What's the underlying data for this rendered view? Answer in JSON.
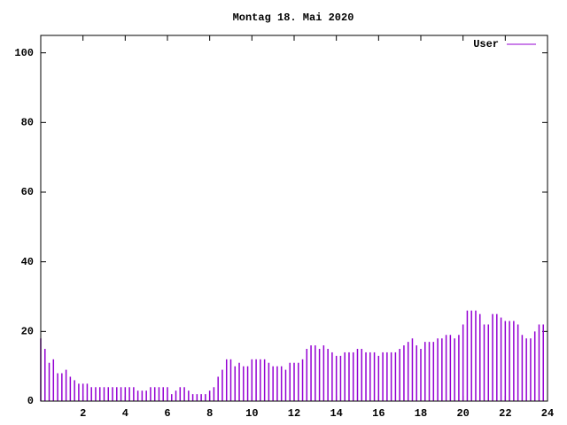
{
  "chart_data": {
    "type": "impulses",
    "title": "Montag 18. Mai 2020",
    "x": [
      0,
      0.2,
      0.4,
      0.6,
      0.8,
      1,
      1.2,
      1.4,
      1.6,
      1.8,
      2,
      2.2,
      2.4,
      2.6,
      2.8,
      3,
      3.2,
      3.4,
      3.6,
      3.8,
      4,
      4.2,
      4.4,
      4.6,
      4.8,
      5,
      5.2,
      5.4,
      5.6,
      5.8,
      6,
      6.2,
      6.4,
      6.6,
      6.8,
      7,
      7.2,
      7.4,
      7.6,
      7.8,
      8,
      8.2,
      8.4,
      8.6,
      8.8,
      9,
      9.2,
      9.4,
      9.6,
      9.8,
      10,
      10.2,
      10.4,
      10.6,
      10.8,
      11,
      11.2,
      11.4,
      11.6,
      11.8,
      12,
      12.2,
      12.4,
      12.6,
      12.8,
      13,
      13.2,
      13.4,
      13.6,
      13.8,
      14,
      14.2,
      14.4,
      14.6,
      14.8,
      15,
      15.2,
      15.4,
      15.6,
      15.8,
      16,
      16.2,
      16.4,
      16.6,
      16.8,
      17,
      17.2,
      17.4,
      17.6,
      17.8,
      18,
      18.2,
      18.4,
      18.6,
      18.8,
      19,
      19.2,
      19.4,
      19.6,
      19.8,
      20,
      20.2,
      20.4,
      20.6,
      20.8,
      21,
      21.2,
      21.4,
      21.6,
      21.8,
      22,
      22.2,
      22.4,
      22.6,
      22.8,
      23,
      23.2,
      23.4,
      23.6,
      23.8
    ],
    "series": [
      {
        "name": "User",
        "color": "#9400d3",
        "values": [
          18,
          15,
          11,
          12,
          8,
          8,
          9,
          7,
          6,
          5,
          5,
          5,
          4,
          4,
          4,
          4,
          4,
          4,
          4,
          4,
          4,
          4,
          4,
          3,
          3,
          3,
          4,
          4,
          4,
          4,
          4,
          2,
          3,
          4,
          4,
          3,
          2,
          2,
          2,
          2,
          3,
          4,
          7,
          9,
          12,
          12,
          10,
          11,
          10,
          10,
          12,
          12,
          12,
          12,
          11,
          10,
          10,
          10,
          9,
          11,
          11,
          11,
          12,
          15,
          16,
          16,
          15,
          16,
          15,
          14,
          13,
          13,
          14,
          14,
          14,
          15,
          15,
          14,
          14,
          14,
          13,
          14,
          14,
          14,
          14,
          15,
          16,
          17,
          18,
          16,
          15,
          17,
          17,
          17,
          18,
          18,
          19,
          19,
          18,
          19,
          22,
          26,
          26,
          26,
          25,
          22,
          22,
          25,
          25,
          24,
          23,
          23,
          23,
          22,
          19,
          18,
          18,
          20,
          22,
          22
        ]
      }
    ],
    "xlim": [
      0,
      24
    ],
    "xticks": [
      2,
      4,
      6,
      8,
      10,
      12,
      14,
      16,
      18,
      20,
      22,
      24
    ],
    "ylim": [
      0,
      105
    ],
    "yticks": [
      0,
      20,
      40,
      60,
      80,
      100
    ],
    "legend": "top-right",
    "grid": false
  }
}
